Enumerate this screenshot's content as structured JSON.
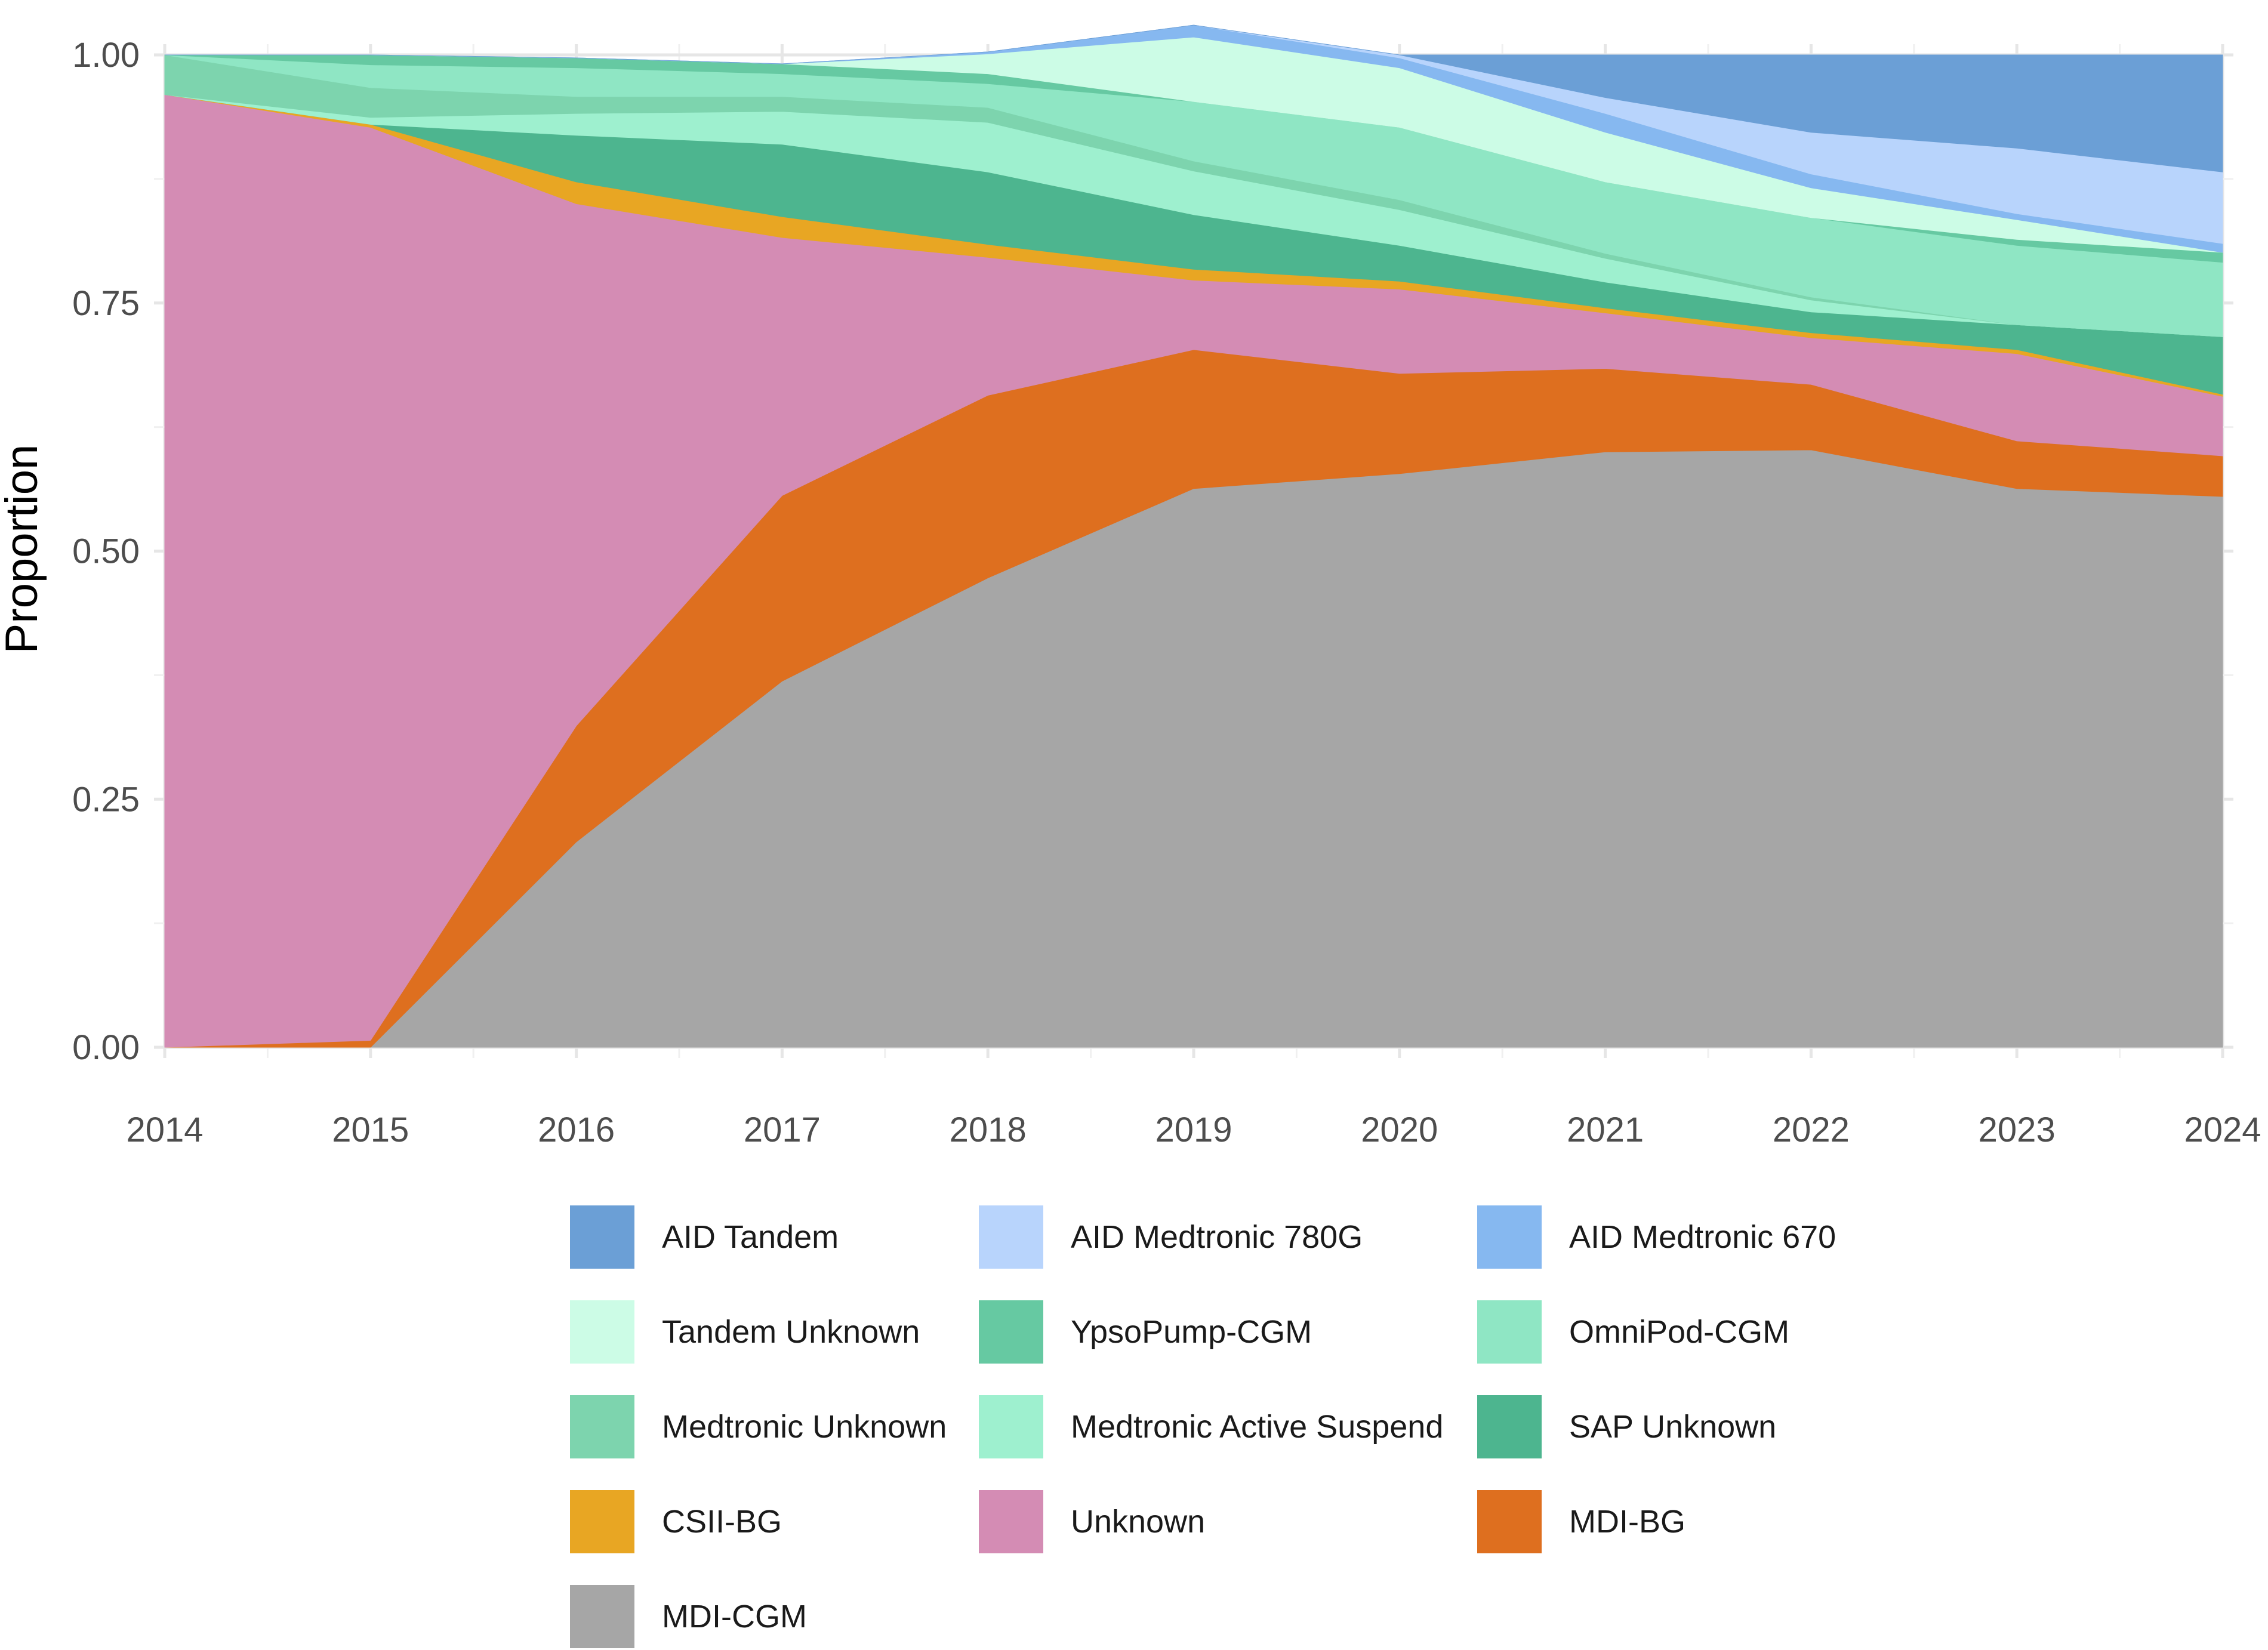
{
  "chart_data": {
    "type": "area",
    "stacked": true,
    "x": [
      2014,
      2015,
      2016,
      2017,
      2018,
      2019,
      2020,
      2021,
      2022,
      2023,
      2024
    ],
    "xlabel": "",
    "ylabel": "Proportion",
    "ylim": [
      0,
      1
    ],
    "yticks": [
      "0.00",
      "0.25",
      "0.50",
      "0.75",
      "1.00"
    ],
    "xticks": [
      "2014",
      "2015",
      "2016",
      "2017",
      "2018",
      "2019",
      "2020",
      "2021",
      "2022",
      "2023",
      "2024"
    ],
    "grid": true,
    "legend_position": "bottom",
    "series": [
      {
        "name": "MDI-CGM",
        "color": "#a6a6a6",
        "values": [
          0.0,
          0.0,
          0.207,
          0.369,
          0.473,
          0.563,
          0.578,
          0.6,
          0.602,
          0.563,
          0.555
        ]
      },
      {
        "name": "MDI-BG",
        "color": "#de6f1f",
        "values": [
          0.0,
          0.007,
          0.117,
          0.187,
          0.184,
          0.14,
          0.101,
          0.084,
          0.066,
          0.048,
          0.041
        ]
      },
      {
        "name": "Unknown",
        "color": "#d48cb4",
        "values": [
          0.96,
          0.92,
          0.526,
          0.26,
          0.139,
          0.07,
          0.085,
          0.056,
          0.047,
          0.088,
          0.06
        ]
      },
      {
        "name": "CSII-BG",
        "color": "#e8a623",
        "values": [
          0.0,
          0.003,
          0.022,
          0.021,
          0.013,
          0.011,
          0.008,
          0.005,
          0.005,
          0.004,
          0.002
        ]
      },
      {
        "name": "SAP Unknown",
        "color": "#4db58f",
        "values": [
          0.0,
          0.0,
          0.047,
          0.073,
          0.073,
          0.055,
          0.036,
          0.026,
          0.021,
          0.025,
          0.058
        ]
      },
      {
        "name": "Medtronic Active Suspend",
        "color": "#9ef0cf",
        "values": [
          0.0,
          0.007,
          0.022,
          0.033,
          0.05,
          0.044,
          0.036,
          0.024,
          0.012,
          0.0,
          0.0
        ]
      },
      {
        "name": "Medtronic Unknown",
        "color": "#7dd4ae",
        "values": [
          0.04,
          0.03,
          0.017,
          0.015,
          0.015,
          0.01,
          0.01,
          0.005,
          0.003,
          0.0,
          0.0
        ]
      },
      {
        "name": "OmniPod-CGM",
        "color": "#8fe6c4",
        "values": [
          0.0,
          0.023,
          0.029,
          0.023,
          0.024,
          0.06,
          0.073,
          0.072,
          0.08,
          0.08,
          0.075
        ]
      },
      {
        "name": "YpsoPump-CGM",
        "color": "#66c9a2",
        "values": [
          0.0,
          0.01,
          0.01,
          0.01,
          0.01,
          0.0,
          0.0,
          0.0,
          0.0,
          0.006,
          0.01
        ]
      },
      {
        "name": "Tandem Unknown",
        "color": "#ccfce6",
        "values": [
          0.0,
          0.0,
          0.0,
          0.0,
          0.02,
          0.065,
          0.06,
          0.05,
          0.03,
          0.02,
          0.0
        ]
      },
      {
        "name": "AID Medtronic 670",
        "color": "#86b8f0",
        "values": [
          0.0,
          0.0,
          0.0,
          0.0,
          0.002,
          0.012,
          0.01,
          0.019,
          0.014,
          0.006,
          0.009
        ]
      },
      {
        "name": "AID Medtronic 780G",
        "color": "#b8d4fc",
        "values": [
          0.0,
          0.0,
          0.0,
          0.0,
          0.0,
          0.0,
          0.003,
          0.016,
          0.042,
          0.066,
          0.072
        ]
      },
      {
        "name": "AID Tandem",
        "color": "#6b9fd6",
        "values": [
          0.0,
          0.0,
          0.0,
          0.0,
          0.0,
          0.0,
          0.0,
          0.043,
          0.078,
          0.094,
          0.118
        ]
      }
    ],
    "legend_order": [
      "AID Tandem",
      "AID Medtronic 780G",
      "AID Medtronic 670",
      "Tandem Unknown",
      "YpsoPump-CGM",
      "OmniPod-CGM",
      "Medtronic Unknown",
      "Medtronic Active Suspend",
      "SAP Unknown",
      "CSII-BG",
      "Unknown",
      "MDI-BG",
      "MDI-CGM"
    ]
  }
}
